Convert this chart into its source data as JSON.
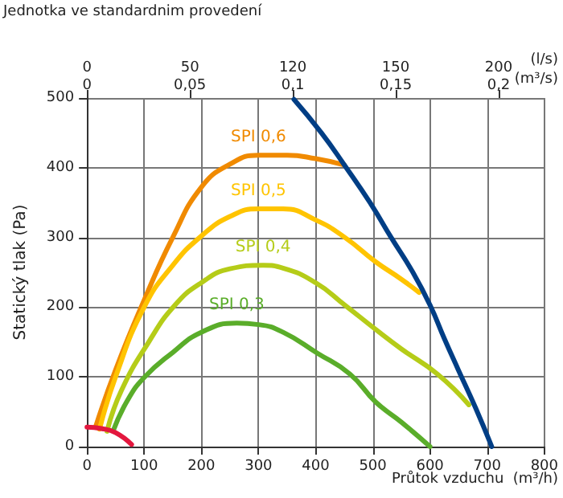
{
  "chart_data": {
    "type": "line",
    "title": "Jednotka ve standardnim provedení",
    "xlabel": "Průtok vzduchu  (m³/h)",
    "ylabel": "Statický tlak (Pa)",
    "x2label": "(m³/s)",
    "annotations": [
      "0",
      "50",
      "120",
      "150",
      "200",
      "(l/s)"
    ],
    "xlim": [
      0,
      800
    ],
    "xticks": [
      0,
      100,
      200,
      300,
      400,
      500,
      600,
      700,
      800
    ],
    "ylim": [
      0,
      500
    ],
    "yticks": [
      0,
      100,
      200,
      300,
      400,
      500
    ],
    "x2lim": [
      0,
      0.2222
    ],
    "x2ticks": [
      0,
      {
        "value": 0.05,
        "label": "0,05"
      },
      {
        "value": 0.1,
        "label": "0,1"
      },
      {
        "value": 0.15,
        "label": "0,15"
      },
      {
        "value": 0.2,
        "label": "0,2"
      }
    ],
    "grid": true,
    "legend": false,
    "marker": "none",
    "line_style": "solid",
    "series": [
      {
        "name": "SPI 0,6",
        "color": "#f08a00",
        "x": [
          15,
          50,
          100,
          150,
          200,
          250,
          300,
          350,
          400,
          450
        ],
        "values": [
          28,
          110,
          210,
          300,
          372,
          405,
          418,
          418,
          413,
          404
        ]
      },
      {
        "name": "SPI 0,5",
        "color": "#ffc400",
        "x": [
          22,
          50,
          100,
          150,
          200,
          250,
          300,
          343,
          400,
          451,
          505,
          550,
          581
        ],
        "values": [
          25,
          100,
          200,
          260,
          302,
          330,
          341,
          341,
          325,
          300,
          265,
          240,
          221
        ]
      },
      {
        "name": "SPI 0,4",
        "color": "#b5cc18",
        "x": [
          35,
          60,
          108,
          154,
          200,
          250,
          308,
          343,
          400,
          451,
          505,
          550,
          613,
          668
        ],
        "values": [
          22,
          80,
          150,
          203,
          235,
          255,
          260,
          256,
          235,
          203,
          168,
          140,
          104,
          60
        ]
      },
      {
        "name": "SPI 0,3",
        "color": "#5aad2a",
        "x": [
          46,
          70,
          100,
          150,
          200,
          262,
          300,
          343,
          403,
          460,
          505,
          550,
          600
        ],
        "values": [
          23,
          65,
          99,
          135,
          164,
          177,
          175,
          164,
          134,
          104,
          64,
          35,
          0
        ]
      },
      {
        "color": "#003e85",
        "x": [
          362,
          410,
          451,
          495,
          532,
          570,
          600,
          625,
          649,
          680,
          708
        ],
        "values": [
          498,
          450,
          403,
          350,
          300,
          250,
          203,
          155,
          111,
          55,
          0
        ]
      },
      {
        "color": "#e3173e",
        "x": [
          0,
          25,
          50,
          78
        ],
        "values": [
          28,
          26,
          20,
          3
        ]
      }
    ]
  }
}
